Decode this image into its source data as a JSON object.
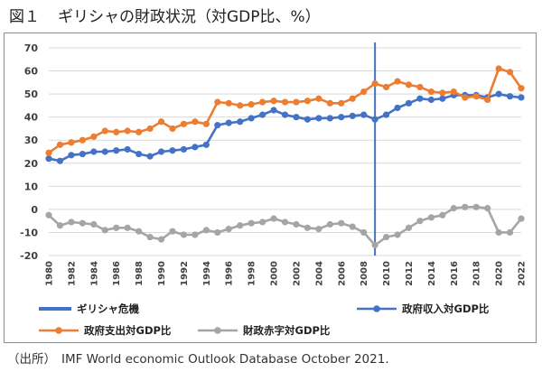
{
  "figure": {
    "label": "図１",
    "title": "ギリシャの財政状況（対GDP比、%）"
  },
  "source": {
    "label": "（出所）",
    "text": "IMF World economic Outlook Database October 2021."
  },
  "chart_data": {
    "type": "line",
    "title": "ギリシャの財政状況（対GDP比、%）",
    "xlabel": "",
    "ylabel": "",
    "ylim": [
      -20,
      70
    ],
    "yticks": [
      -20,
      -10,
      0,
      10,
      20,
      30,
      40,
      50,
      60,
      70
    ],
    "grid": true,
    "x": [
      1980,
      1981,
      1982,
      1983,
      1984,
      1985,
      1986,
      1987,
      1988,
      1989,
      1990,
      1991,
      1992,
      1993,
      1994,
      1995,
      1996,
      1997,
      1998,
      1999,
      2000,
      2001,
      2002,
      2003,
      2004,
      2005,
      2006,
      2007,
      2008,
      2009,
      2010,
      2011,
      2012,
      2013,
      2014,
      2015,
      2016,
      2017,
      2018,
      2019,
      2020,
      2021,
      2022
    ],
    "xticks": [
      1980,
      1982,
      1984,
      1986,
      1988,
      1990,
      1992,
      1994,
      1996,
      1998,
      2000,
      2002,
      2004,
      2006,
      2008,
      2010,
      2012,
      2014,
      2016,
      2018,
      2020,
      2022
    ],
    "annotation": {
      "label": "ギリシャ危機",
      "x": 2009,
      "color": "#4472c4"
    },
    "series": [
      {
        "name": "政府収入対GDP比",
        "color": "#4472c4",
        "values": [
          22,
          21,
          23.5,
          24,
          25,
          25,
          25.5,
          26,
          24,
          23,
          25,
          25.5,
          26,
          27,
          28,
          36.5,
          37.5,
          38,
          39.5,
          41,
          43,
          41,
          40,
          39,
          39.5,
          39.5,
          40,
          40.5,
          41,
          39,
          41,
          44,
          46,
          48,
          47.5,
          48,
          49.5,
          49.5,
          49.5,
          48.5,
          50,
          49,
          48.5
        ]
      },
      {
        "name": "政府支出対GDP比",
        "color": "#ed7d31",
        "values": [
          24.5,
          28,
          29,
          30,
          31.5,
          34,
          33.5,
          34,
          33.5,
          35,
          38,
          35,
          37,
          38,
          37,
          46.5,
          46,
          45,
          45.5,
          46.5,
          47,
          46.5,
          46.5,
          47,
          48,
          46,
          46,
          48,
          51,
          54.5,
          53,
          55.5,
          54,
          53,
          51,
          50.5,
          51,
          48.5,
          49,
          47.5,
          61,
          59.5,
          52.5
        ]
      },
      {
        "name": "財政赤字対GDP比",
        "color": "#a5a5a5",
        "values": [
          -2.5,
          -7,
          -5.5,
          -6,
          -6.5,
          -9,
          -8,
          -8,
          -9.5,
          -12,
          -13,
          -9.5,
          -11,
          -11,
          -9,
          -10,
          -8.5,
          -7,
          -6,
          -5.5,
          -4,
          -5.5,
          -6.5,
          -8,
          -8.5,
          -6.5,
          -6,
          -7.5,
          -10,
          -15.5,
          -12,
          -11,
          -8,
          -5,
          -3.5,
          -2.5,
          0.5,
          1,
          1,
          0.5,
          -10,
          -10,
          -4
        ]
      }
    ]
  }
}
